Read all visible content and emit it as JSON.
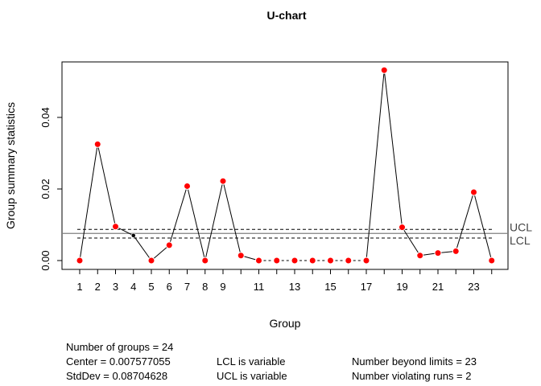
{
  "chart_data": {
    "type": "line",
    "title": "U-chart",
    "xlabel": "Group",
    "ylabel": "Group summary statistics",
    "x": [
      1,
      2,
      3,
      4,
      5,
      6,
      7,
      8,
      9,
      10,
      11,
      12,
      13,
      14,
      15,
      16,
      17,
      18,
      19,
      20,
      21,
      22,
      23,
      24
    ],
    "xticks": [
      1,
      2,
      3,
      4,
      5,
      6,
      7,
      8,
      9,
      11,
      13,
      15,
      17,
      19,
      21,
      23
    ],
    "ylim": [
      0,
      0.05
    ],
    "yticks": [
      0.0,
      0.02,
      0.04
    ],
    "ytick_labels": [
      "0.00",
      "0.02",
      "0.04"
    ],
    "series": [
      {
        "values": [
          0.0,
          0.0325,
          0.0095,
          0.007,
          0.0,
          0.0043,
          0.0208,
          0.0,
          0.0222,
          0.0014,
          0.0,
          0.0,
          0.0,
          0.0,
          0.0,
          0.0,
          0.0,
          0.0532,
          0.0093,
          0.0014,
          0.0021,
          0.0026,
          0.0191,
          0.0
        ],
        "violations": [
          1,
          1,
          1,
          0,
          1,
          1,
          1,
          1,
          1,
          1,
          1,
          1,
          1,
          1,
          1,
          1,
          1,
          1,
          1,
          1,
          1,
          1,
          1,
          1
        ]
      }
    ],
    "center": 0.007577055,
    "ucl": 0.0087,
    "lcl": 0.0063,
    "labels": {
      "ucl": "UCL",
      "lcl": "LCL"
    },
    "colors": {
      "violation": "#ff0000",
      "normal": "#000000",
      "line": "#000000",
      "center": "#808080"
    }
  },
  "stats": {
    "col1": [
      "Number of groups = 24",
      "Center = 0.007577055",
      "StdDev = 0.08704628"
    ],
    "col2": [
      "LCL is variable",
      "UCL is variable"
    ],
    "col3": [
      "Number beyond limits = 23",
      "Number violating runs = 2"
    ]
  }
}
